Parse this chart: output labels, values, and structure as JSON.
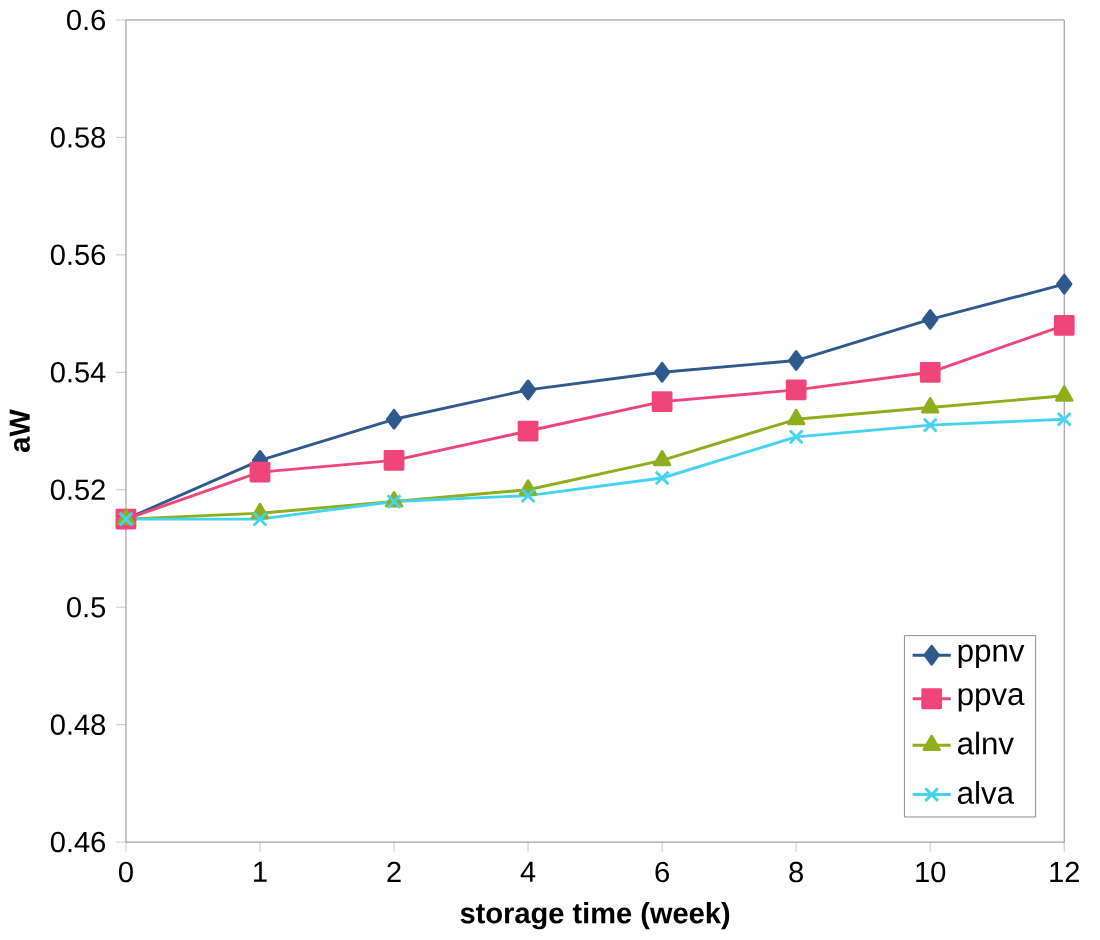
{
  "chart_data": {
    "type": "line",
    "xlabel": "storage time (week)",
    "ylabel": "aW",
    "categories": [
      "0",
      "1",
      "2",
      "4",
      "6",
      "8",
      "10",
      "12"
    ],
    "series": [
      {
        "name": "ppnv",
        "color": "#2e5a8e",
        "marker": "diamond",
        "values": [
          0.515,
          0.525,
          0.532,
          0.537,
          0.54,
          0.542,
          0.549,
          0.555
        ]
      },
      {
        "name": "ppva",
        "color": "#f0457a",
        "marker": "square",
        "values": [
          0.515,
          0.523,
          0.525,
          0.53,
          0.535,
          0.537,
          0.54,
          0.548
        ]
      },
      {
        "name": "alnv",
        "color": "#8fae1b",
        "marker": "triangle",
        "values": [
          0.515,
          0.516,
          0.518,
          0.52,
          0.525,
          0.532,
          0.534,
          0.536
        ]
      },
      {
        "name": "alva",
        "color": "#44d4f0",
        "marker": "cross",
        "values": [
          0.515,
          0.515,
          0.518,
          0.519,
          0.522,
          0.529,
          0.531,
          0.532
        ]
      }
    ],
    "ylim": [
      0.46,
      0.6
    ],
    "yticks": [
      0.46,
      0.48,
      0.5,
      0.52,
      0.54,
      0.56,
      0.58,
      0.6
    ],
    "grid": false,
    "legend": "bottom right",
    "line_style": "solid"
  }
}
